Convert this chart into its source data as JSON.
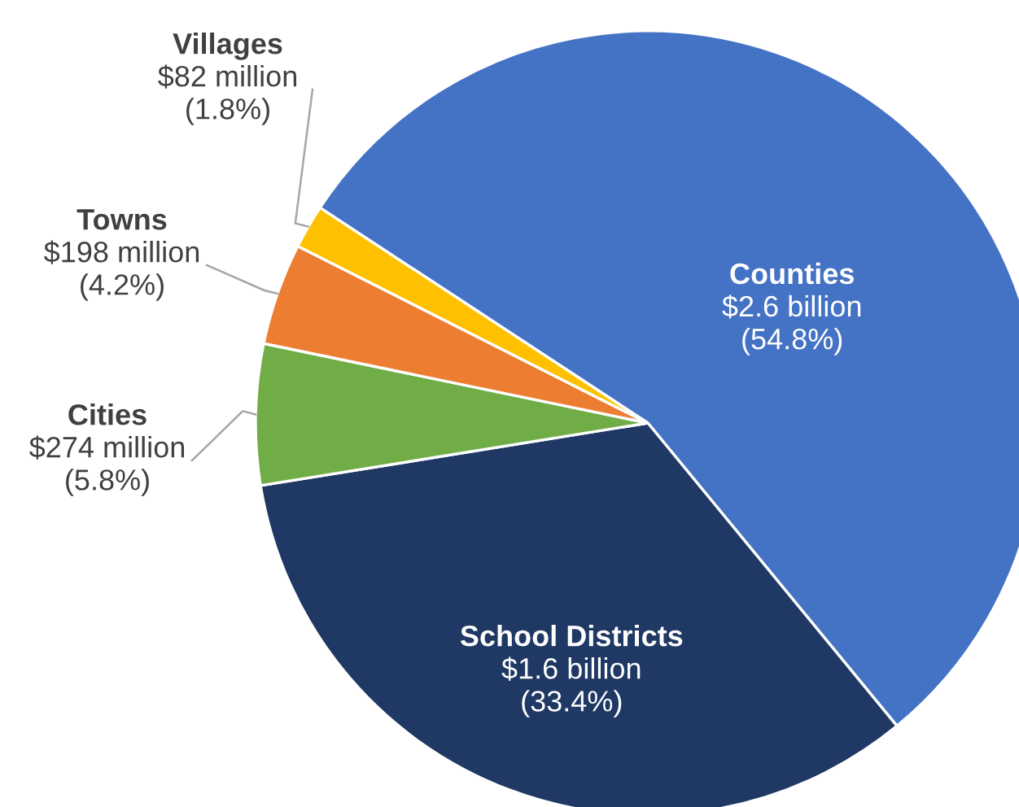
{
  "chart_data": {
    "type": "pie",
    "categories": [
      "Counties",
      "School Districts",
      "Cities",
      "Towns",
      "Villages"
    ],
    "values": [
      54.8,
      33.4,
      5.8,
      4.2,
      1.8
    ],
    "value_labels": [
      "$2.6 billion\n(54.8%)",
      "$1.6 billion\n(33.4%)",
      "$274 million\n(5.8%)",
      "$198 million\n(4.2%)",
      "$82 million\n(1.8%)"
    ],
    "colors": [
      "#4472c4",
      "#1f3864",
      "#70ad47",
      "#ed7d31",
      "#ffc000"
    ],
    "legend": false
  }
}
